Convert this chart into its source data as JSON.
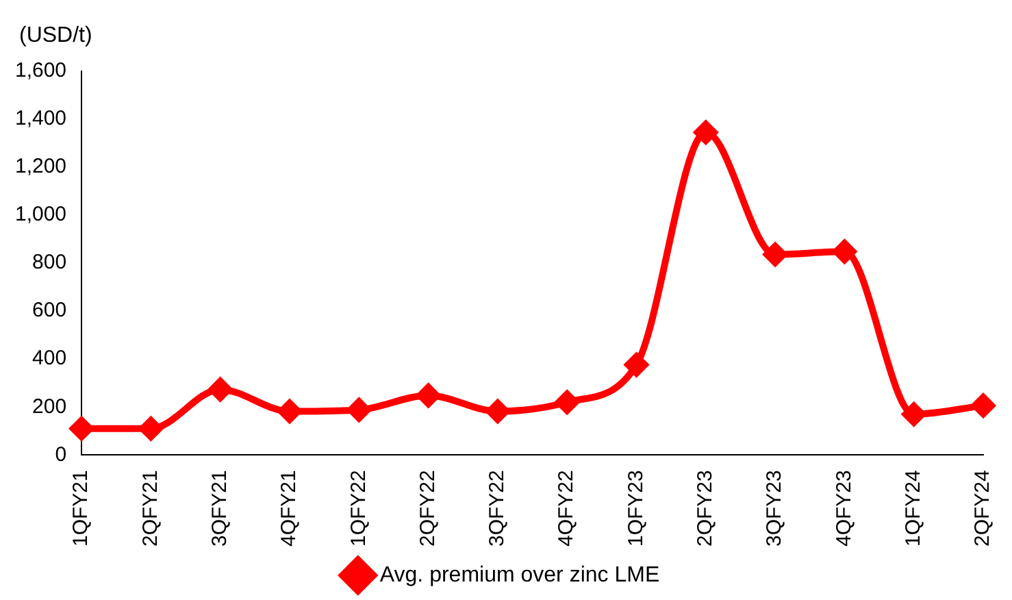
{
  "chart_data": {
    "type": "line",
    "ylabel": "(USD/t)",
    "categories": [
      "1QFY21",
      "2QFY21",
      "3QFY21",
      "4QFY21",
      "1QFY22",
      "2QFY22",
      "3QFY22",
      "4QFY22",
      "1QFY23",
      "2QFY23",
      "3QFY23",
      "4QFY23",
      "1QFY24",
      "2QFY24"
    ],
    "series": [
      {
        "name": "Avg. premium over zinc LME",
        "color": "#ff0000",
        "values": [
          110,
          110,
          273,
          182,
          188,
          248,
          182,
          220,
          376,
          1345,
          836,
          848,
          170,
          206
        ]
      }
    ],
    "ylim": [
      0,
      1600
    ],
    "yticks": [
      0,
      200,
      400,
      600,
      800,
      {
        "value": 1000,
        "label": "1,000"
      },
      {
        "value": 1200,
        "label": "1,200"
      },
      {
        "value": 1400,
        "label": "1,400"
      },
      {
        "value": 1600,
        "label": "1,600"
      }
    ],
    "grid": false,
    "legend": "bottom",
    "marker": "diamond",
    "line_style": "solid"
  }
}
